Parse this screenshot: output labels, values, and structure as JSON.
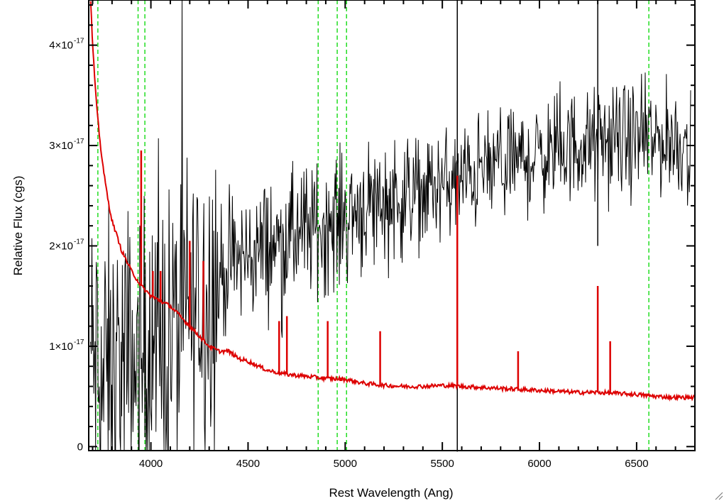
{
  "chart_data": {
    "type": "line",
    "xlabel": "Rest Wavelength (Ang)",
    "ylabel": "Relative Flux (cgs)",
    "xlim": [
      3680,
      6800
    ],
    "ylim": [
      -0.04,
      4.45
    ],
    "y_unit_exponent": "-17",
    "x_ticks": [
      4000,
      4500,
      5000,
      5500,
      6000,
      6500
    ],
    "x_tick_labels": [
      "4000",
      "4500",
      "5000",
      "5500",
      "6000",
      "6500"
    ],
    "y_ticks": [
      0,
      1,
      2,
      3,
      4
    ],
    "y_tick_labels": [
      "0",
      "1×10",
      "2×10",
      "3×10",
      "4×10"
    ],
    "grid": false,
    "reference_lines": {
      "color": "#22dd22",
      "style": "dashed",
      "x": [
        3727,
        3934,
        3969,
        4861,
        4959,
        5007,
        6563
      ]
    },
    "series": [
      {
        "color": "#000000",
        "style": "noisy-spectrum",
        "x": [
          3690,
          3750,
          3800,
          3900,
          4000,
          4100,
          4200,
          4300,
          4400,
          4500,
          4600,
          4700,
          4800,
          4900,
          5000,
          5100,
          5200,
          5300,
          5400,
          5500,
          5600,
          5700,
          5800,
          5900,
          6000,
          6100,
          6200,
          6300,
          6400,
          6500,
          6600,
          6700,
          6780
        ],
        "y": [
          0.9,
          0.6,
          0.7,
          0.8,
          0.9,
          1.1,
          1.35,
          1.6,
          1.8,
          1.9,
          2.0,
          2.05,
          2.15,
          2.2,
          2.3,
          2.4,
          2.45,
          2.5,
          2.55,
          2.6,
          2.65,
          2.75,
          2.8,
          2.85,
          2.9,
          2.95,
          3.0,
          3.0,
          3.05,
          3.05,
          3.05,
          3.05,
          3.0
        ],
        "features": [
          {
            "x": 5577,
            "y": -0.05
          },
          {
            "x": 5577,
            "y": 4.45
          },
          {
            "x": 6300,
            "y": 4.45
          },
          {
            "x": 6300,
            "y": 2.0
          }
        ]
      },
      {
        "color": "#dd0000",
        "style": "sky-model",
        "x": [
          3690,
          3700,
          3720,
          3740,
          3760,
          3780,
          3800,
          3850,
          3900,
          3950,
          4000,
          4050,
          4100,
          4150,
          4200,
          4250,
          4300,
          4350,
          4400,
          4450,
          4500,
          4600,
          4700,
          4800,
          4900,
          5000,
          5100,
          5200,
          5300,
          5400,
          5500,
          5600,
          5700,
          5800,
          5900,
          6000,
          6100,
          6200,
          6300,
          6400,
          6500,
          6600,
          6700,
          6800
        ],
        "y": [
          4.45,
          4.0,
          3.4,
          3.0,
          2.7,
          2.45,
          2.25,
          1.95,
          1.75,
          1.6,
          1.5,
          1.45,
          1.4,
          1.3,
          1.2,
          1.1,
          1.0,
          0.95,
          0.95,
          0.88,
          0.85,
          0.76,
          0.72,
          0.7,
          0.68,
          0.67,
          0.63,
          0.61,
          0.6,
          0.6,
          0.61,
          0.6,
          0.59,
          0.58,
          0.57,
          0.56,
          0.55,
          0.54,
          0.54,
          0.53,
          0.52,
          0.5,
          0.49,
          0.49
        ],
        "emission_lines": [
          {
            "x": 3950,
            "y": 2.95
          },
          {
            "x": 4010,
            "y": 1.75
          },
          {
            "x": 4050,
            "y": 1.75
          },
          {
            "x": 4200,
            "y": 2.05
          },
          {
            "x": 4270,
            "y": 1.85
          },
          {
            "x": 4660,
            "y": 1.25
          },
          {
            "x": 4700,
            "y": 1.3
          },
          {
            "x": 4910,
            "y": 1.25
          },
          {
            "x": 5180,
            "y": 1.15
          },
          {
            "x": 5577,
            "y": 2.7
          },
          {
            "x": 5890,
            "y": 0.95
          },
          {
            "x": 6300,
            "y": 1.6
          },
          {
            "x": 6364,
            "y": 1.05
          }
        ]
      }
    ]
  }
}
